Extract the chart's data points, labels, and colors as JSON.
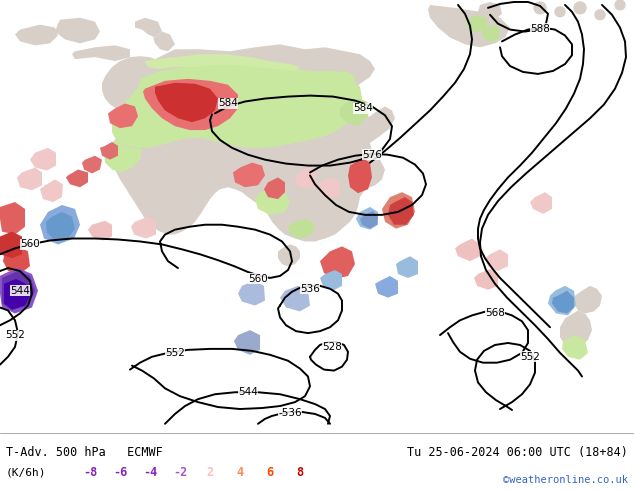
{
  "title_left": "T-Adv. 500 hPa   ECMWF",
  "title_right": "Tu 25-06-2024 06:00 UTC (18+84)",
  "unit_label": "(K/6h)",
  "legend_values": [
    -8,
    -6,
    -4,
    -2,
    2,
    4,
    6,
    8
  ],
  "watermark": "©weatheronline.co.uk",
  "watermark_color": "#3366cc",
  "bg_color": "#ffffff",
  "fig_width": 6.34,
  "fig_height": 4.9,
  "dpi": 100,
  "map_bg": "#f0eeec",
  "neg_legend_color": "#9966cc",
  "pos_legend_colors": [
    "#ffcccc",
    "#ff9966",
    "#ff5500",
    "#cc0000"
  ],
  "contour_color": "#000000",
  "contour_lw": 1.4,
  "label_fontsize": 7.5
}
